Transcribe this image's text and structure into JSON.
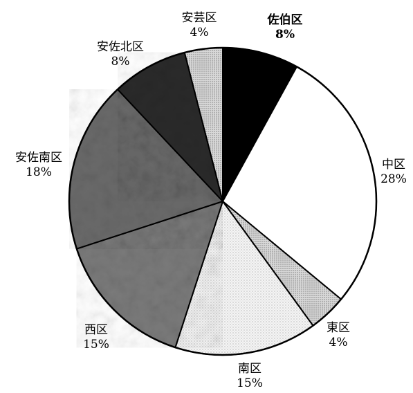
{
  "chart_data": {
    "type": "pie",
    "title": "",
    "start_angle_deg": 0,
    "direction": "clockwise",
    "slices": [
      {
        "name": "佐伯区",
        "pct_label": "8%",
        "value": 8,
        "color": "#000000",
        "pattern": "solid",
        "bold": true
      },
      {
        "name": "中区",
        "pct_label": "28%",
        "value": 28,
        "color": "#ffffff",
        "pattern": "solid",
        "bold": false
      },
      {
        "name": "東区",
        "pct_label": "4%",
        "value": 4,
        "color": "#d2d2d2",
        "pattern": "dots",
        "bold": false
      },
      {
        "name": "南区",
        "pct_label": "15%",
        "value": 15,
        "color": "#f3f3f3",
        "pattern": "dots",
        "bold": false
      },
      {
        "name": "西区",
        "pct_label": "15%",
        "value": 15,
        "color": "#7a7a7a",
        "pattern": "noise",
        "bold": false
      },
      {
        "name": "安佐南区",
        "pct_label": "18%",
        "value": 18,
        "color": "#6a6a6a",
        "pattern": "noise",
        "bold": false
      },
      {
        "name": "安佐北区",
        "pct_label": "8%",
        "value": 8,
        "color": "#2a2a2a",
        "pattern": "noise",
        "bold": false
      },
      {
        "name": "安芸区",
        "pct_label": "4%",
        "value": 4,
        "color": "#cfcfcf",
        "pattern": "dots",
        "bold": false
      }
    ]
  }
}
